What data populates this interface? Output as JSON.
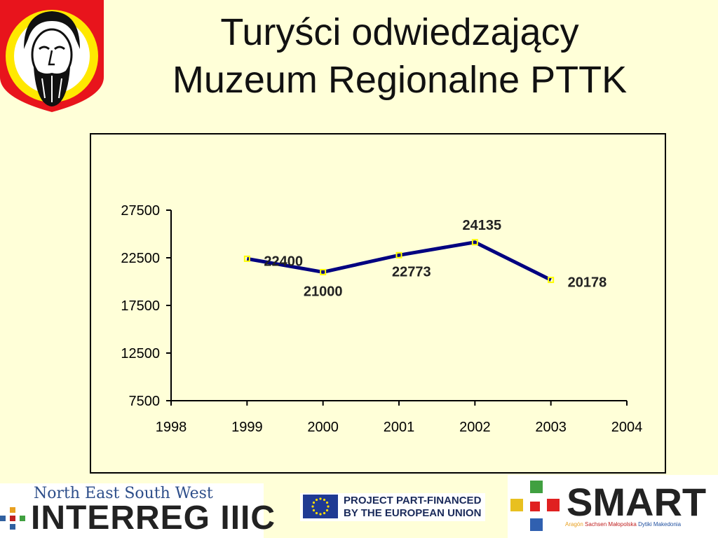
{
  "title": {
    "line1": "Turyści odwiedzający",
    "line2": "Muzeum Regionalne PTTK"
  },
  "chart_data": {
    "type": "line",
    "title": "",
    "xlabel": "",
    "ylabel": "",
    "x": [
      1999,
      2000,
      2001,
      2002,
      2003
    ],
    "series": [
      {
        "name": "",
        "values": [
          22400,
          21000,
          22773,
          24135,
          20178
        ]
      }
    ],
    "data_labels": [
      "22400",
      "21000",
      "22773",
      "24135",
      "20178"
    ],
    "xlim": [
      1998,
      2004
    ],
    "ylim": [
      7500,
      27500
    ],
    "x_ticks": [
      "1998",
      "1999",
      "2000",
      "2001",
      "2002",
      "2003",
      "2004"
    ],
    "y_ticks": [
      "27500",
      "22500",
      "17500",
      "12500",
      "7500"
    ],
    "grid": false,
    "legend": "none",
    "line_color": "#000080",
    "marker_color": "#ffff00"
  },
  "footer": {
    "interreg_region": "North East South West",
    "interreg_name": "INTERREG IIIC",
    "eu_line1": "PROJECT PART-FINANCED",
    "eu_line2": "BY THE EUROPEAN UNION",
    "smart_name": "SMART",
    "smart_regions": [
      "Aragón",
      "Sachsen",
      "Małopolska",
      "Dytiki Makedonia"
    ]
  },
  "colors": {
    "background": "#ffffd8",
    "crest_red": "#e8141c",
    "crest_yellow": "#ffe800"
  },
  "icons": {
    "crest": "coat-of-arms-bearded-face-icon",
    "eu": "eu-flag-icon"
  }
}
